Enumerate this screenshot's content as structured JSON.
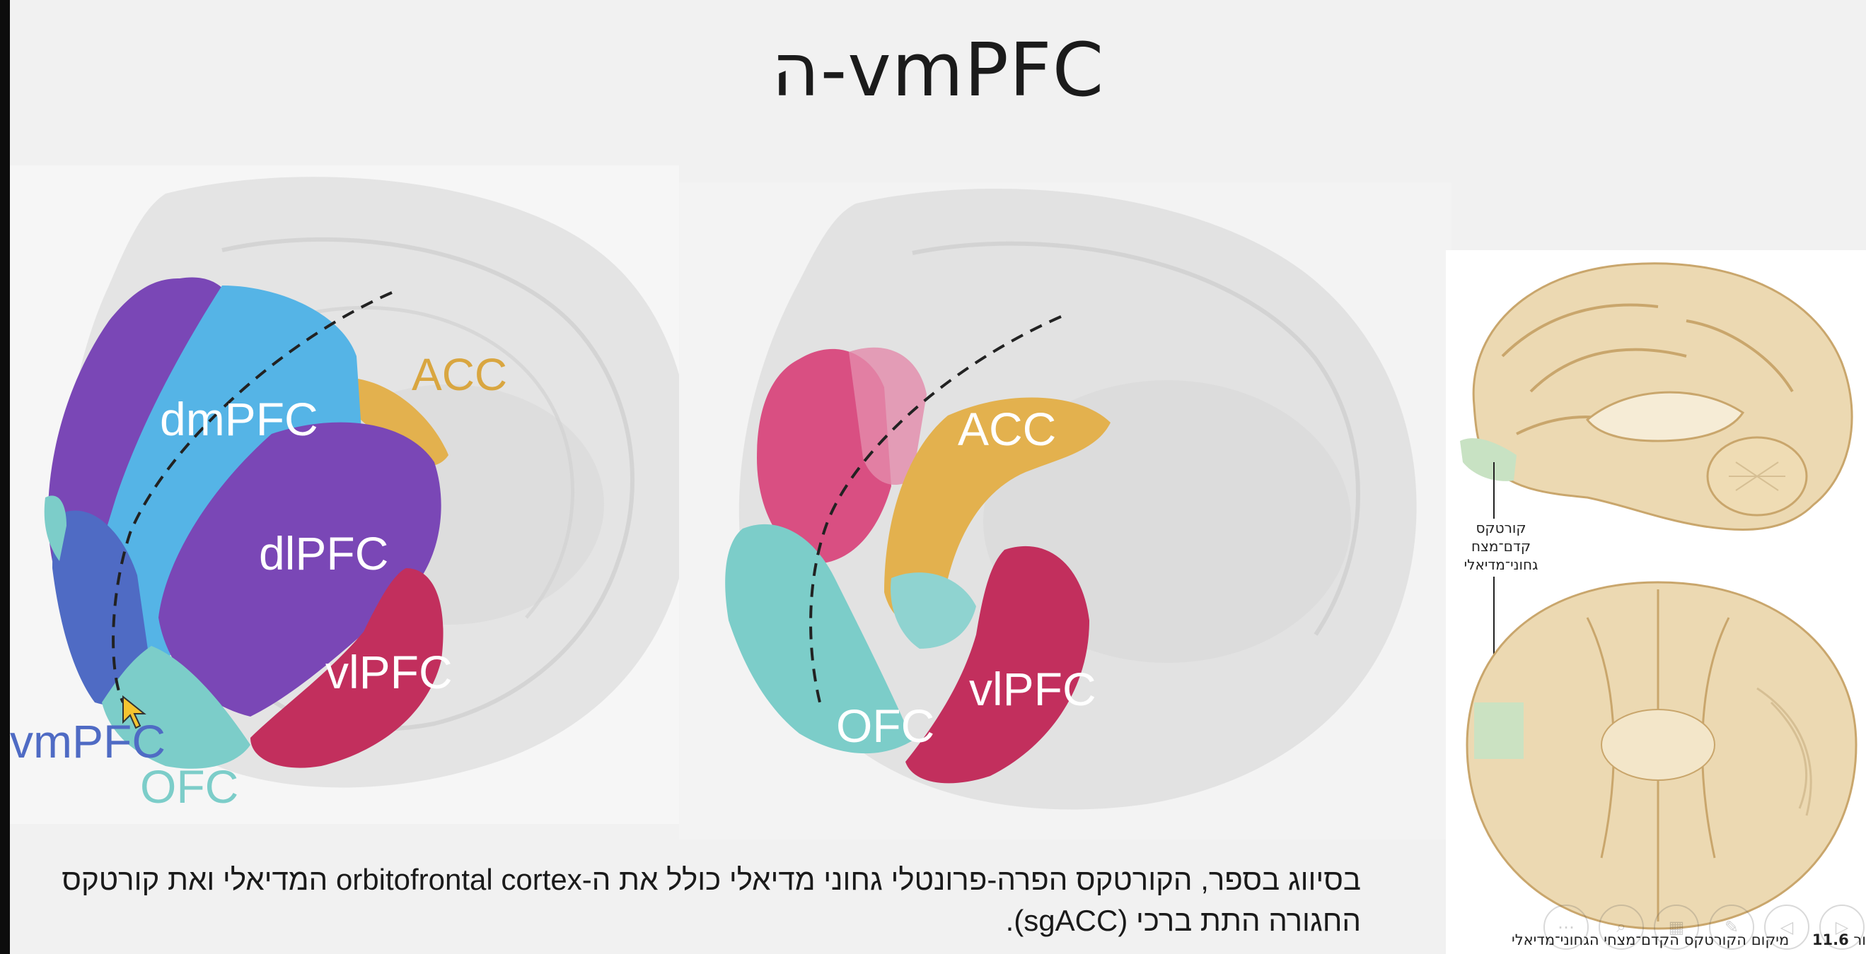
{
  "slide": {
    "title": "ה-vmPFC",
    "caption": "בסיווג בספר, הקורטקס הפרה-פרונטלי גחוני מדיאלי כולל את ה-orbitofrontal cortex המדיאלי ואת קורטקס החגורה התת ברכי (sgACC).",
    "figure_caption_number": "11.6",
    "figure_caption_text": "מיקום הקורטקס הקדם־מצחי הגחוני־מדיאלי",
    "figure_caption_prefix": "ור"
  },
  "panel_left": {
    "labels": {
      "acc": "ACC",
      "dmpfc": "dmPFC",
      "dlpfc": "dlPFC",
      "vlpfc": "vlPFC",
      "vmpfc": "vmPFC",
      "ofc": "OFC"
    }
  },
  "panel_middle": {
    "labels": {
      "acc": "ACC",
      "vlpfc": "vlPFC",
      "ofc": "OFC"
    }
  },
  "panel_right": {
    "label_line1": "קורטקס",
    "label_line2": "קדם־מצח",
    "label_line3": "גחוני־מדיאלי"
  },
  "toolbar": {
    "items": [
      "more-icon",
      "zoom-icon",
      "slides-icon",
      "pen-icon",
      "prev-icon",
      "next-icon"
    ],
    "glyphs": [
      "⋯",
      "⌕",
      "▦",
      "✎",
      "◁",
      "▷"
    ]
  },
  "colors": {
    "dmpfc": "#55b4e6",
    "dlpfc": "#7a47b6",
    "vlpfc": "#c22f5d",
    "vmpfc": "#4f6bc4",
    "ofc": "#7ccdc9",
    "acc": "#e3b14e",
    "pink": "#d94f82",
    "brain_gray": "#d9d9d9",
    "brain_tan": "#ecd9b2",
    "highlight_green": "#c8e2c3"
  }
}
